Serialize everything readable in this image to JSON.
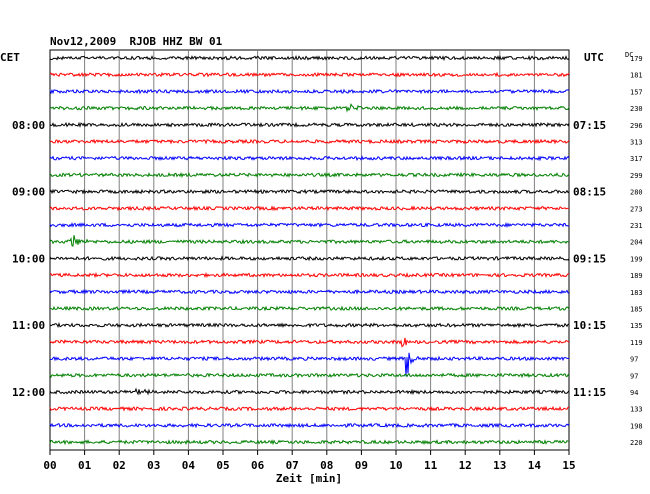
{
  "header": {
    "title": "Nov12,2009  RJOB HHZ BW 01",
    "left_zone": "CET",
    "right_zone": "UTC",
    "dc_label": "DC"
  },
  "chart_data": {
    "type": "seismogram",
    "station": "RJOB",
    "channel": "HHZ",
    "network": "BW",
    "location": "01",
    "date": "Nov12,2009",
    "xlabel": "Zeit [min]",
    "x_ticks": [
      "00",
      "01",
      "02",
      "03",
      "04",
      "05",
      "06",
      "07",
      "08",
      "09",
      "10",
      "11",
      "12",
      "13",
      "14",
      "15"
    ],
    "xlim": [
      0,
      15
    ],
    "minutes_per_line": 15,
    "line_colors": [
      "#000000",
      "#ff0000",
      "#0000ff",
      "#008000"
    ],
    "cet_labels": [
      "08:00",
      "09:00",
      "10:00",
      "11:00",
      "12:00"
    ],
    "utc_labels": [
      "07:15",
      "08:15",
      "09:15",
      "10:15",
      "11:15"
    ],
    "dc_offsets": [
      "179",
      "181",
      "157",
      "230",
      "296",
      "313",
      "317",
      "299",
      "280",
      "273",
      "231",
      "204",
      "199",
      "189",
      "183",
      "185",
      "135",
      "119",
      "97",
      "97",
      "94",
      "133",
      "198",
      "220"
    ],
    "events": [
      {
        "trace": 3,
        "minute": 8.6,
        "amplitude": "small"
      },
      {
        "trace": 11,
        "minute": 0.6,
        "amplitude": "medium"
      },
      {
        "trace": 17,
        "minute": 10.2,
        "amplitude": "small"
      },
      {
        "trace": 18,
        "minute": 10.3,
        "amplitude": "large"
      },
      {
        "trace": 20,
        "minute": 2.5,
        "amplitude": "small"
      }
    ],
    "grid": true
  }
}
